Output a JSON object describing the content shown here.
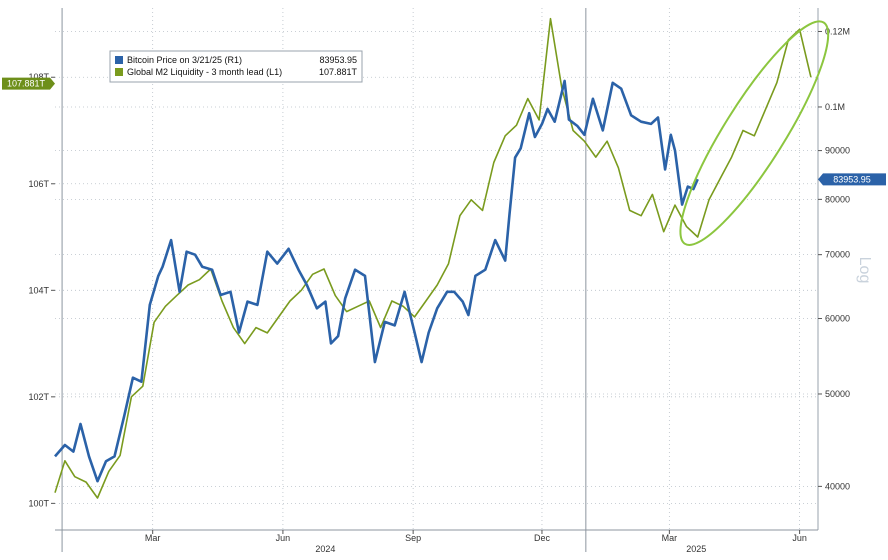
{
  "chart_data": {
    "type": "line",
    "legend": {
      "placement": "top-left",
      "entries": [
        {
          "label": "Bitcoin Price on 3/21/25 (R1)",
          "value": "83953.95",
          "color": "#2b62a8"
        },
        {
          "label": "Global M2 Liquidity - 3 month lead (L1)",
          "value": "107.881T",
          "color": "#7a9b1e"
        }
      ]
    },
    "left_axis": {
      "ticks": [
        {
          "value": 100,
          "label": "100T"
        },
        {
          "value": 102,
          "label": "102T"
        },
        {
          "value": 104,
          "label": "104T"
        },
        {
          "value": 106,
          "label": "106T"
        },
        {
          "value": 108,
          "label": "108T"
        }
      ],
      "range": [
        99.5,
        109.3
      ],
      "current": {
        "value": 107.881,
        "label": "107.881T",
        "color": "#6e8f1a"
      }
    },
    "right_axis": {
      "scale": "log",
      "scale_label": "Log",
      "ticks": [
        {
          "value": 40000,
          "label": "40000"
        },
        {
          "value": 50000,
          "label": "50000"
        },
        {
          "value": 60000,
          "label": "60000"
        },
        {
          "value": 70000,
          "label": "70000"
        },
        {
          "value": 80000,
          "label": "80000"
        },
        {
          "value": 90000,
          "label": "90000"
        },
        {
          "value": 100000,
          "label": "0.1M"
        },
        {
          "value": 120000,
          "label": "0.12M"
        }
      ],
      "range": [
        36000,
        127000
      ],
      "current": {
        "value": 83953.95,
        "label": "83953.95",
        "color": "#2b62a8"
      }
    },
    "x_axis": {
      "range": [
        "2023-12-23",
        "2025-06-14"
      ],
      "month_ticks": [
        {
          "date": "2024-03-01",
          "label": "Mar"
        },
        {
          "date": "2024-06-01",
          "label": "Jun"
        },
        {
          "date": "2024-09-01",
          "label": "Sep"
        },
        {
          "date": "2024-12-01",
          "label": "Dec"
        },
        {
          "date": "2025-03-01",
          "label": "Mar"
        },
        {
          "date": "2025-06-01",
          "label": "Jun"
        }
      ],
      "year_labels": [
        {
          "date": "2024-07-01",
          "label": "2024"
        },
        {
          "date": "2025-03-20",
          "label": "2025"
        }
      ],
      "year_dividers": [
        "2023-12-28",
        "2025-01-01"
      ]
    },
    "grid": true,
    "series": [
      {
        "name": "Bitcoin Price on 3/21/25",
        "axis": "right",
        "color": "#2b62a8",
        "points": [
          [
            "2023-12-23",
            43000
          ],
          [
            "2023-12-30",
            44200
          ],
          [
            "2024-01-05",
            43500
          ],
          [
            "2024-01-10",
            46500
          ],
          [
            "2024-01-16",
            43000
          ],
          [
            "2024-01-22",
            40500
          ],
          [
            "2024-01-28",
            42500
          ],
          [
            "2024-02-03",
            43000
          ],
          [
            "2024-02-10",
            47500
          ],
          [
            "2024-02-16",
            52000
          ],
          [
            "2024-02-22",
            51500
          ],
          [
            "2024-02-28",
            62000
          ],
          [
            "2024-03-05",
            66500
          ],
          [
            "2024-03-08",
            68000
          ],
          [
            "2024-03-14",
            72500
          ],
          [
            "2024-03-20",
            64000
          ],
          [
            "2024-03-25",
            70500
          ],
          [
            "2024-03-31",
            70000
          ],
          [
            "2024-04-05",
            68000
          ],
          [
            "2024-04-12",
            67500
          ],
          [
            "2024-04-18",
            63500
          ],
          [
            "2024-04-25",
            64000
          ],
          [
            "2024-05-01",
            58000
          ],
          [
            "2024-05-07",
            62500
          ],
          [
            "2024-05-14",
            62000
          ],
          [
            "2024-05-21",
            70500
          ],
          [
            "2024-05-28",
            68500
          ],
          [
            "2024-06-05",
            71000
          ],
          [
            "2024-06-12",
            67500
          ],
          [
            "2024-06-18",
            65000
          ],
          [
            "2024-06-25",
            61500
          ],
          [
            "2024-07-01",
            62500
          ],
          [
            "2024-07-05",
            56500
          ],
          [
            "2024-07-10",
            57500
          ],
          [
            "2024-07-15",
            63000
          ],
          [
            "2024-07-22",
            67500
          ],
          [
            "2024-07-29",
            66500
          ],
          [
            "2024-08-05",
            54000
          ],
          [
            "2024-08-12",
            59500
          ],
          [
            "2024-08-19",
            59000
          ],
          [
            "2024-08-26",
            64000
          ],
          [
            "2024-09-02",
            58000
          ],
          [
            "2024-09-07",
            54000
          ],
          [
            "2024-09-12",
            58000
          ],
          [
            "2024-09-18",
            61500
          ],
          [
            "2024-09-25",
            64000
          ],
          [
            "2024-09-30",
            64000
          ],
          [
            "2024-10-06",
            62500
          ],
          [
            "2024-10-10",
            60500
          ],
          [
            "2024-10-15",
            66500
          ],
          [
            "2024-10-22",
            67500
          ],
          [
            "2024-10-29",
            72500
          ],
          [
            "2024-11-05",
            69000
          ],
          [
            "2024-11-08",
            77000
          ],
          [
            "2024-11-12",
            88500
          ],
          [
            "2024-11-16",
            90500
          ],
          [
            "2024-11-22",
            98500
          ],
          [
            "2024-11-26",
            93000
          ],
          [
            "2024-12-01",
            96000
          ],
          [
            "2024-12-05",
            99500
          ],
          [
            "2024-12-10",
            96500
          ],
          [
            "2024-12-17",
            106500
          ],
          [
            "2024-12-20",
            97000
          ],
          [
            "2024-12-26",
            95500
          ],
          [
            "2024-12-31",
            93500
          ],
          [
            "2025-01-06",
            102000
          ],
          [
            "2025-01-13",
            94500
          ],
          [
            "2025-01-20",
            106000
          ],
          [
            "2025-01-26",
            104500
          ],
          [
            "2025-02-02",
            98000
          ],
          [
            "2025-02-09",
            96500
          ],
          [
            "2025-02-16",
            96000
          ],
          [
            "2025-02-21",
            97500
          ],
          [
            "2025-02-26",
            86000
          ],
          [
            "2025-03-02",
            93500
          ],
          [
            "2025-03-05",
            90000
          ],
          [
            "2025-03-10",
            79000
          ],
          [
            "2025-03-14",
            82500
          ],
          [
            "2025-03-18",
            82000
          ],
          [
            "2025-03-21",
            84000
          ]
        ]
      },
      {
        "name": "Global M2 Liquidity - 3 month lead",
        "axis": "left",
        "color": "#7a9b1e",
        "points": [
          [
            "2023-12-23",
            100.2
          ],
          [
            "2023-12-30",
            100.8
          ],
          [
            "2024-01-06",
            100.5
          ],
          [
            "2024-01-14",
            100.4
          ],
          [
            "2024-01-22",
            100.1
          ],
          [
            "2024-01-30",
            100.6
          ],
          [
            "2024-02-07",
            100.9
          ],
          [
            "2024-02-15",
            102.0
          ],
          [
            "2024-02-23",
            102.2
          ],
          [
            "2024-03-02",
            103.4
          ],
          [
            "2024-03-10",
            103.7
          ],
          [
            "2024-03-18",
            103.9
          ],
          [
            "2024-03-26",
            104.1
          ],
          [
            "2024-04-03",
            104.2
          ],
          [
            "2024-04-11",
            104.4
          ],
          [
            "2024-04-19",
            103.8
          ],
          [
            "2024-04-27",
            103.3
          ],
          [
            "2024-05-05",
            103.0
          ],
          [
            "2024-05-13",
            103.3
          ],
          [
            "2024-05-21",
            103.2
          ],
          [
            "2024-05-29",
            103.5
          ],
          [
            "2024-06-06",
            103.8
          ],
          [
            "2024-06-14",
            104.0
          ],
          [
            "2024-06-22",
            104.3
          ],
          [
            "2024-06-30",
            104.4
          ],
          [
            "2024-07-08",
            103.9
          ],
          [
            "2024-07-16",
            103.6
          ],
          [
            "2024-07-24",
            103.7
          ],
          [
            "2024-08-01",
            103.8
          ],
          [
            "2024-08-09",
            103.3
          ],
          [
            "2024-08-17",
            103.8
          ],
          [
            "2024-08-25",
            103.7
          ],
          [
            "2024-09-02",
            103.5
          ],
          [
            "2024-09-10",
            103.8
          ],
          [
            "2024-09-18",
            104.1
          ],
          [
            "2024-09-26",
            104.5
          ],
          [
            "2024-10-04",
            105.4
          ],
          [
            "2024-10-12",
            105.7
          ],
          [
            "2024-10-20",
            105.5
          ],
          [
            "2024-10-28",
            106.4
          ],
          [
            "2024-11-05",
            106.9
          ],
          [
            "2024-11-13",
            107.1
          ],
          [
            "2024-11-21",
            107.6
          ],
          [
            "2024-11-29",
            107.2
          ],
          [
            "2024-12-07",
            109.1
          ],
          [
            "2024-12-15",
            107.8
          ],
          [
            "2024-12-23",
            107.0
          ],
          [
            "2024-12-31",
            106.8
          ],
          [
            "2025-01-08",
            106.5
          ],
          [
            "2025-01-16",
            106.8
          ],
          [
            "2025-01-24",
            106.3
          ],
          [
            "2025-02-01",
            105.5
          ],
          [
            "2025-02-09",
            105.4
          ],
          [
            "2025-02-17",
            105.8
          ],
          [
            "2025-02-25",
            105.1
          ],
          [
            "2025-03-05",
            105.6
          ],
          [
            "2025-03-13",
            105.2
          ],
          [
            "2025-03-21",
            105.0
          ],
          [
            "2025-03-29",
            105.7
          ],
          [
            "2025-04-06",
            106.1
          ],
          [
            "2025-04-14",
            106.5
          ],
          [
            "2025-04-22",
            107.0
          ],
          [
            "2025-04-30",
            106.9
          ],
          [
            "2025-05-08",
            107.4
          ],
          [
            "2025-05-16",
            107.9
          ],
          [
            "2025-05-24",
            108.7
          ],
          [
            "2025-06-01",
            108.9
          ],
          [
            "2025-06-09",
            108.0
          ]
        ]
      }
    ],
    "annotation": {
      "type": "ellipse",
      "color": "#8cc63f",
      "from": "2025-03-15",
      "to": "2025-06-15"
    }
  }
}
